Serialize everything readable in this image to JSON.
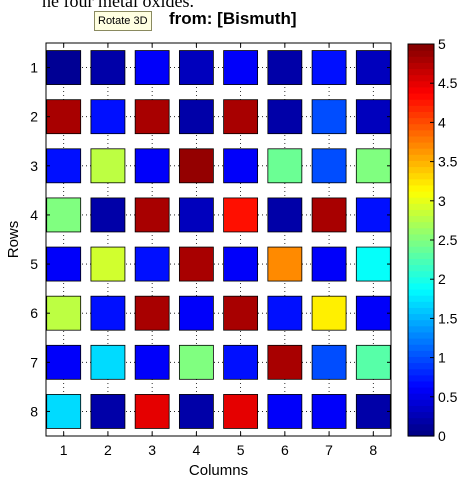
{
  "caption_fragment": "he four metal oxides.",
  "tooltip": "Rotate 3D",
  "chart_data": {
    "type": "heatmap",
    "title": "from: [Bismuth]",
    "xlabel": "Columns",
    "ylabel": "Rows",
    "x": [
      1,
      2,
      3,
      4,
      5,
      6,
      7,
      8
    ],
    "y": [
      1,
      2,
      3,
      4,
      5,
      6,
      7,
      8
    ],
    "xlim": [
      0.6,
      8.4
    ],
    "ylim": [
      0.5,
      8.5
    ],
    "clim": [
      0,
      5
    ],
    "grid": true,
    "colormap": "jet",
    "colorbar_ticks": [
      0,
      0.5,
      1,
      1.5,
      2,
      2.5,
      3,
      3.5,
      4,
      4.5,
      5
    ],
    "colorbar_tick_labels": [
      "0",
      "0.5",
      "1",
      "1.5",
      "2",
      "2.5",
      "3",
      "3.5",
      "4",
      "4.5",
      "5"
    ],
    "values": [
      [
        0.1,
        0.2,
        0.6,
        0.3,
        0.6,
        0.2,
        0.7,
        0.3
      ],
      [
        4.8,
        0.7,
        4.8,
        0.2,
        4.8,
        0.2,
        1.0,
        0.3
      ],
      [
        0.7,
        2.8,
        0.6,
        4.9,
        0.6,
        2.4,
        1.0,
        2.5
      ],
      [
        2.5,
        0.2,
        4.8,
        0.3,
        4.3,
        0.2,
        4.8,
        0.7
      ],
      [
        0.6,
        2.9,
        0.7,
        4.8,
        0.6,
        3.7,
        0.6,
        1.9
      ],
      [
        2.8,
        0.7,
        4.8,
        0.6,
        4.8,
        0.7,
        3.2,
        0.6
      ],
      [
        0.6,
        1.7,
        0.6,
        2.5,
        0.7,
        4.8,
        1.0,
        2.3
      ],
      [
        1.7,
        0.2,
        4.5,
        0.2,
        4.5,
        0.6,
        0.6,
        0.2
      ]
    ]
  }
}
